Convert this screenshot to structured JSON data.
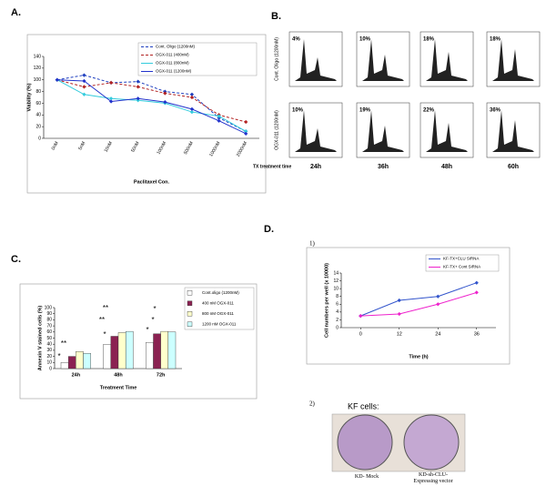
{
  "panel_labels": {
    "a": "A.",
    "b": "B.",
    "c": "C.",
    "d": "D.",
    "d1": "1)",
    "d2": "2)"
  },
  "chart_data": [
    {
      "type": "line",
      "x_label": "Paclitaxel Con.",
      "y_label": "Viability (%)",
      "categories": [
        "0nM",
        "5nM",
        "10nM",
        "50nM",
        "100nM",
        "500nM",
        "1000nM",
        "2000nM"
      ],
      "ylim": [
        0,
        140
      ],
      "yticks": [
        0,
        20,
        40,
        60,
        80,
        100,
        120,
        140
      ],
      "series": [
        {
          "name": "Cont. Oligo (1200nM)",
          "color": "#1f3fbf",
          "dash": true,
          "values": [
            100,
            108,
            95,
            97,
            80,
            75,
            35,
            12
          ]
        },
        {
          "name": "OGX-011 (400nM)",
          "color": "#b22222",
          "dash": true,
          "values": [
            100,
            88,
            95,
            88,
            77,
            70,
            40,
            28
          ]
        },
        {
          "name": "OGX-011 (800nM)",
          "color": "#33ccdd",
          "dash": false,
          "values": [
            100,
            75,
            68,
            65,
            60,
            45,
            38,
            12
          ]
        },
        {
          "name": "OGX-011 (1200nM)",
          "color": "#2233cc",
          "dash": false,
          "values": [
            100,
            98,
            63,
            68,
            62,
            50,
            30,
            8
          ]
        }
      ]
    },
    {
      "type": "bar",
      "x_label": "Treatment Time",
      "y_label": "Annexin V stained cells (%)",
      "categories": [
        "24h",
        "48h",
        "72h"
      ],
      "ylim": [
        0,
        100
      ],
      "yticks": [
        0,
        10,
        20,
        30,
        40,
        50,
        60,
        70,
        80,
        90,
        100
      ],
      "series": [
        {
          "name": "Cont.oligo (1200nM)",
          "color": "#ffffff",
          "values": [
            10,
            40,
            43
          ]
        },
        {
          "name": "400 nM OGX-011",
          "color": "#8b2252",
          "values": [
            20,
            53,
            57
          ]
        },
        {
          "name": "800 nM OGX-011",
          "color": "#ffffcc",
          "values": [
            28,
            59,
            61
          ]
        },
        {
          "name": "1200 nM OGX-011",
          "color": "#ccffff",
          "values": [
            25,
            61,
            60
          ]
        }
      ],
      "annotations": [
        "*",
        "**",
        "*",
        "**",
        "**",
        "*",
        "*",
        "*"
      ]
    },
    {
      "type": "line",
      "x_label": "Time (h)",
      "y_label": "Cell numbers per well (x 10000)",
      "x": [
        0,
        12,
        24,
        36
      ],
      "xlim": [
        -6,
        42
      ],
      "xticks": [
        0,
        12,
        24,
        36
      ],
      "ylim": [
        0,
        14
      ],
      "yticks": [
        0,
        2,
        4,
        6,
        8,
        10,
        12,
        14
      ],
      "series": [
        {
          "name": "KF-TX+CLU SiRNA",
          "color": "#3355cc",
          "dash": false,
          "values": [
            3,
            7,
            8,
            11.5
          ]
        },
        {
          "name": "KF-TX+ Cont SiRNA",
          "color": "#ee22cc",
          "dash": false,
          "values": [
            3,
            3.5,
            6,
            9
          ]
        }
      ]
    }
  ],
  "flow_cytometry": {
    "row_labels": [
      "Cont. Oligo (1200nM)",
      "OGX-011 (1200nM)"
    ],
    "time_label": "TX treatment time",
    "times": [
      "24h",
      "36h",
      "48h",
      "60h"
    ],
    "percentages": [
      [
        "4%",
        "10%",
        "18%",
        "18%"
      ],
      [
        "10%",
        "19%",
        "22%",
        "36%"
      ]
    ]
  },
  "colony_assay": {
    "title": "KF cells:",
    "labels": [
      "KD- Mock",
      "KD-sh-CLU-Expressing vector"
    ]
  }
}
